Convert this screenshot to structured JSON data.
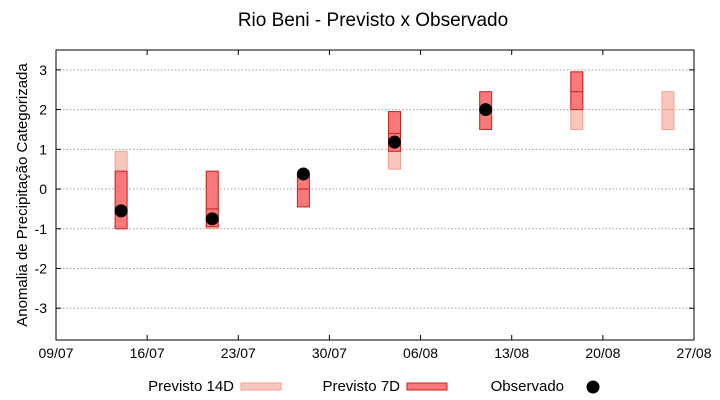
{
  "chart_data": {
    "type": "range-bar",
    "title": "Rio Beni - Previsto x Observado",
    "ylabel": "Anomalia de Precipitação Categorizada",
    "xlabel": "",
    "ylim": [
      -3.8,
      3.5
    ],
    "yticks": [
      -3,
      -2,
      -1,
      0,
      1,
      2,
      3
    ],
    "xticks": [
      "09/07",
      "16/07",
      "23/07",
      "30/07",
      "06/08",
      "13/08",
      "20/08",
      "27/08"
    ],
    "grid": true,
    "legend_position": "bottom",
    "colors": {
      "previsto_14d_fill": "#f9c6bd",
      "previsto_14d_edge": "#f0a090",
      "previsto_7d_fill": "#f97878",
      "previsto_7d_edge": "#c82020",
      "observado": "#000000",
      "grid": "#a0a0a0"
    },
    "series": [
      {
        "name": "Previsto 14D",
        "kind": "range",
        "points": [
          {
            "x": "14/07",
            "low": -1.0,
            "high": 0.95,
            "mid": 0.0
          },
          {
            "x": "21/07",
            "low": -1.0,
            "high": 0.4,
            "mid": -0.3
          },
          {
            "x": "04/08",
            "low": 0.5,
            "high": 1.95,
            "mid": 1.4
          },
          {
            "x": "18/08",
            "low": 1.5,
            "high": 2.95,
            "mid": 2.0
          },
          {
            "x": "25/08",
            "low": 1.5,
            "high": 2.45,
            "mid": 2.0
          }
        ]
      },
      {
        "name": "Previsto 7D",
        "kind": "range",
        "points": [
          {
            "x": "14/07",
            "low": -1.0,
            "high": 0.45,
            "mid": -0.5
          },
          {
            "x": "21/07",
            "low": -0.95,
            "high": 0.45,
            "mid": -0.5
          },
          {
            "x": "28/07",
            "low": -0.45,
            "high": 0.35,
            "mid": 0.0
          },
          {
            "x": "04/08",
            "low": 0.95,
            "high": 1.95,
            "mid": 1.4
          },
          {
            "x": "11/08",
            "low": 1.5,
            "high": 2.45,
            "mid": 2.0
          },
          {
            "x": "18/08",
            "low": 2.0,
            "high": 2.95,
            "mid": 2.45
          }
        ]
      },
      {
        "name": "Observado",
        "kind": "point",
        "points": [
          {
            "x": "14/07",
            "y": -0.55
          },
          {
            "x": "21/07",
            "y": -0.75
          },
          {
            "x": "28/07",
            "y": 0.38
          },
          {
            "x": "04/08",
            "y": 1.18
          },
          {
            "x": "11/08",
            "y": 2.0
          }
        ]
      }
    ]
  }
}
